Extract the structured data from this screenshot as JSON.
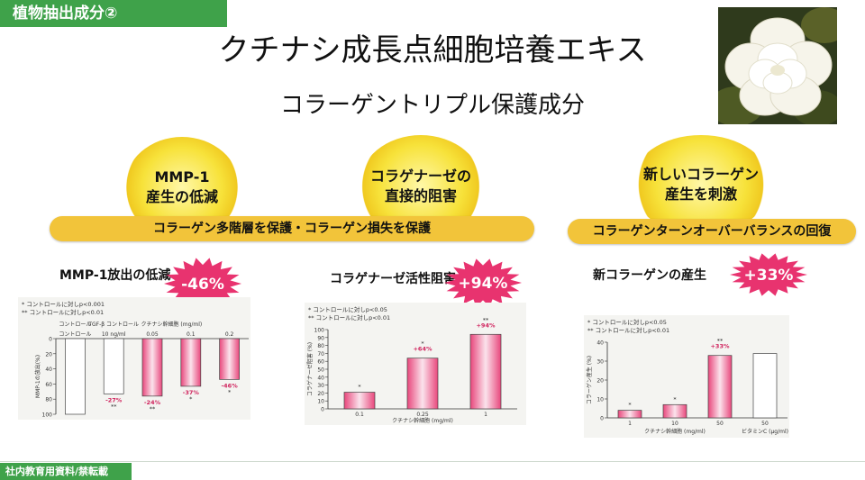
{
  "section_tag": "植物抽出成分②",
  "title": "クチナシ成長点細胞培養エキス",
  "subtitle": "コラーゲントリプル保護成分",
  "colors": {
    "green": "#3fa24a",
    "yellow": "#f7e23a",
    "banner": "#f2c43a",
    "pink": "#e8477c",
    "burst": "#e8336f"
  },
  "circles": [
    {
      "label": "MMP-1\n産生の低減"
    },
    {
      "label": "コラゲナーゼの\n直接的阻害"
    },
    {
      "label": "新しいコラーゲン\n産生を刺激"
    }
  ],
  "banners": {
    "left": "コラーゲン多階層を保護・コラーゲン損失を保護",
    "right": "コラーゲンターンオーバーバランスの回復"
  },
  "footer": "社内教育用資料/禁転載",
  "chart_data": [
    {
      "type": "bar",
      "title": "MMP-1放出の低減",
      "badge": "-46%",
      "notes": [
        "* コントロールに対しp<0.001",
        "** コントロールに対しp<0.01"
      ],
      "ylabel": "MMP-1の放出(%)",
      "ylim": [
        0,
        100
      ],
      "y_ticks": [
        "0",
        "20",
        "40",
        "60",
        "80",
        "100"
      ],
      "categories": [
        "コントロール",
        "10 ng/ml",
        "0.05",
        "0.1",
        "0.2"
      ],
      "group_labels": [
        "コントロール",
        "TGF-β コントロール",
        "クチナシ幹細胞 (mg/ml)"
      ],
      "values": [
        100,
        73,
        76,
        63,
        54
      ],
      "labels": [
        "",
        "-27%",
        "-24%",
        "-37%",
        "-46%"
      ],
      "sig": [
        "",
        "**",
        "**",
        "*",
        "*"
      ]
    },
    {
      "type": "bar",
      "title": "コラゲナーゼ活性阻害",
      "badge": "+94%",
      "notes": [
        "* コントロールに対しp<0.05",
        "** コントロールに対しp<0.01"
      ],
      "ylabel": "コラゲナーゼ阻害 (%)",
      "ylim": [
        0,
        100
      ],
      "y_ticks": [
        "0",
        "10",
        "20",
        "30",
        "40",
        "50",
        "60",
        "70",
        "80",
        "90",
        "100"
      ],
      "categories": [
        "0.1",
        "0.25",
        "1"
      ],
      "xlabel": "クチナシ幹細胞 (mg/ml)",
      "values": [
        21,
        64,
        94
      ],
      "labels": [
        "",
        "+64%",
        "+94%"
      ],
      "sig": [
        "*",
        "*",
        "**"
      ]
    },
    {
      "type": "bar",
      "title": "新コラーゲンの産生",
      "badge": "+33%",
      "notes": [
        "* コントロールに対しp<0.05",
        "** コントロールに対しp<0.01"
      ],
      "ylabel": "コラーゲン産生 (%)",
      "ylim": [
        0,
        40
      ],
      "y_ticks": [
        "0",
        "10",
        "20",
        "30",
        "40"
      ],
      "categories": [
        "1",
        "10",
        "50",
        "50"
      ],
      "xlabel": "クチナシ幹細胞 (mg/ml)",
      "xlabel2": "ビタミンC (μg/ml)",
      "values": [
        4,
        7,
        33,
        34
      ],
      "labels": [
        "",
        "",
        "+33%",
        ""
      ],
      "sig": [
        "*",
        "*",
        "**",
        ""
      ]
    }
  ]
}
